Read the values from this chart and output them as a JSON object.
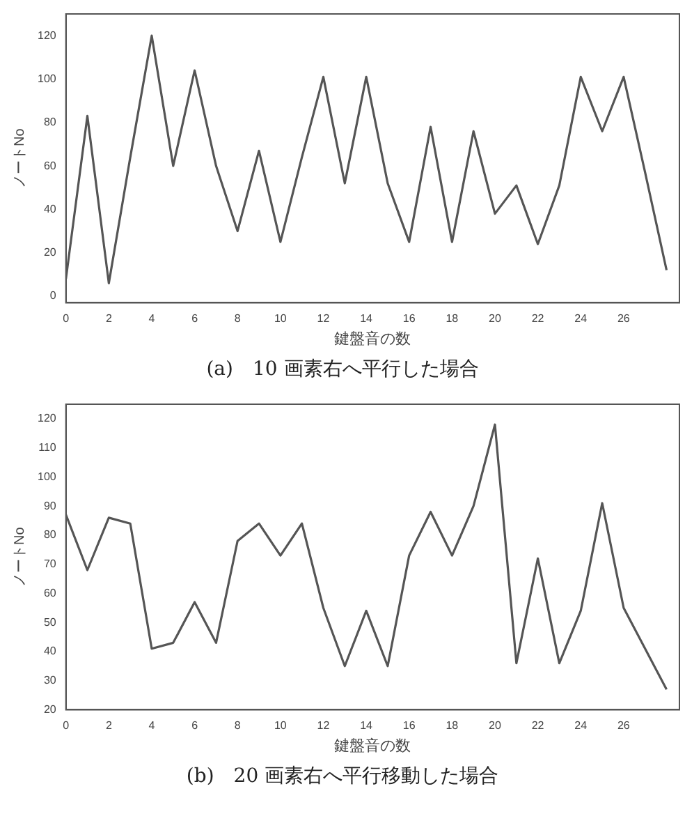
{
  "chart_data": [
    {
      "type": "line",
      "xlabel": "鍵盤音の数",
      "ylabel": "ノートNo",
      "x": [
        0,
        1,
        2,
        3,
        4,
        5,
        6,
        7,
        8,
        9,
        10,
        11,
        12,
        13,
        14,
        15,
        16,
        17,
        18,
        19,
        20,
        21,
        22,
        23,
        24,
        25,
        26,
        27,
        28
      ],
      "series": [
        {
          "color": "#555555",
          "values": [
            8,
            83,
            6,
            64,
            120,
            60,
            104,
            60,
            30,
            67,
            25,
            64,
            101,
            52,
            101,
            52,
            25,
            78,
            25,
            76,
            38,
            51,
            24,
            51,
            101,
            76,
            101,
            57,
            12
          ]
        }
      ],
      "xlim": [
        0,
        28.6
      ],
      "xticks": [
        0,
        2,
        4,
        6,
        8,
        10,
        12,
        14,
        16,
        18,
        20,
        22,
        24,
        26
      ],
      "ylim": [
        -3,
        130
      ],
      "yticks": [
        0,
        20,
        40,
        60,
        80,
        100,
        120
      ],
      "grid": false,
      "legend": false,
      "marker": "none",
      "line_style": "solid",
      "annotations": [
        "(a)　10 画素右へ平行した場合"
      ]
    },
    {
      "type": "line",
      "xlabel": "鍵盤音の数",
      "ylabel": "ノートNo",
      "x": [
        0,
        1,
        2,
        3,
        4,
        5,
        6,
        7,
        8,
        9,
        10,
        11,
        12,
        13,
        14,
        15,
        16,
        17,
        18,
        19,
        20,
        21,
        22,
        23,
        24,
        25,
        26,
        27,
        28
      ],
      "series": [
        {
          "color": "#555555",
          "values": [
            87,
            68,
            86,
            84,
            41,
            43,
            57,
            43,
            78,
            84,
            73,
            84,
            55,
            35,
            54,
            35,
            73,
            88,
            73,
            90,
            118,
            36,
            72,
            36,
            54,
            91,
            55,
            41,
            27
          ]
        }
      ],
      "xlim": [
        0,
        28.6
      ],
      "xticks": [
        0,
        2,
        4,
        6,
        8,
        10,
        12,
        14,
        16,
        18,
        20,
        22,
        24,
        26
      ],
      "ylim": [
        20,
        125
      ],
      "yticks": [
        20,
        30,
        40,
        50,
        60,
        70,
        80,
        90,
        100,
        110,
        120
      ],
      "grid": false,
      "legend": false,
      "marker": "none",
      "line_style": "solid",
      "annotations": [
        "(b)　20 画素右へ平行移動した場合"
      ]
    }
  ]
}
